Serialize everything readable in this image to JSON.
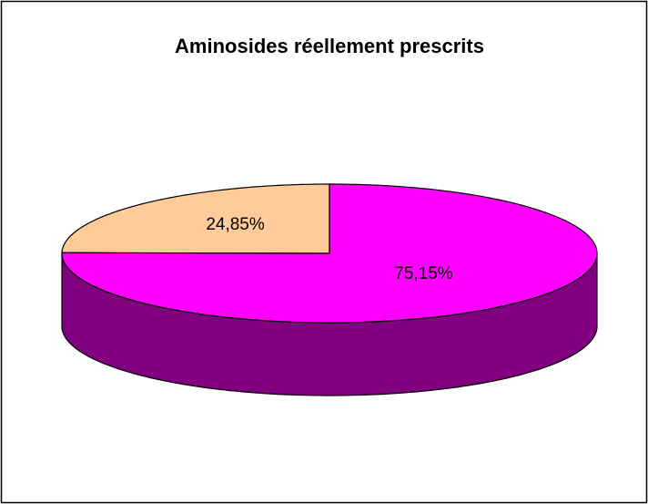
{
  "chart_data": {
    "type": "pie3d",
    "title": "Aminosides réellement prescrits",
    "values": [
      24.85,
      75.15
    ],
    "value_labels": [
      "24,85%",
      "75,15%"
    ],
    "colors": [
      "#FFCC99",
      "#FF00FF"
    ],
    "side_colors": [
      "#806650",
      "#800080"
    ]
  }
}
